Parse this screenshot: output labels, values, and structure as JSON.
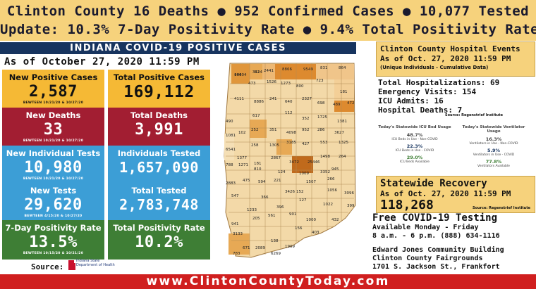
{
  "header": {
    "line1": "Clinton County 16 Deaths  ● 952 Confirmed Cases   ● 10,077 Tested",
    "line2": "Update:   10.3% 7-Day Positivity Rate ● 9.4% Total Positivity Rate"
  },
  "title": "INDIANA COVID-19 POSITIVE CASES",
  "as_of": "As of October 27, 2020 11:59 PM",
  "boxes": [
    {
      "label": "New Positive Cases",
      "value": "2,587",
      "sub": "BEWTEEN 10/21/20 & 10/27/20"
    },
    {
      "label": "Total Positive Cases",
      "value": "169,112",
      "sub": ""
    },
    {
      "label": "New Deaths",
      "value": "33",
      "sub": "BEWTEEN 10/21/20 & 10/27/20"
    },
    {
      "label": "Total Deaths",
      "value": "3,991",
      "sub": ""
    },
    {
      "label": "New Individual Tests",
      "value": "10,980",
      "sub": "BEWTEEN 10/21/20 & 10/27/20"
    },
    {
      "label": "Individuals Tested",
      "value": "1,657,090",
      "sub": ""
    },
    {
      "label": "New Tests",
      "value": "29,620",
      "sub": "BEWTEEN 4/15/20 & 10/27/20"
    },
    {
      "label": "Total Tested",
      "value": "2,783,748",
      "sub": ""
    },
    {
      "label": "7-Day Positivity Rate",
      "value": "13.5%",
      "sub": "BEWTEEN 10/15/20 & 10/21/20"
    },
    {
      "label": "Total Positivity Rate",
      "value": "10.2%",
      "sub": ""
    }
  ],
  "source": {
    "label": "Source:",
    "logo_text_1": "Indiana State",
    "logo_text_2": "Department of Health"
  },
  "map_numbers": [
    "14604",
    "3614",
    "2441",
    "8866",
    "9549",
    "831",
    "864",
    "473",
    "1526",
    "1273",
    "800",
    "723",
    "181",
    "4111",
    "8886",
    "241",
    "640",
    "2327",
    "698",
    "489",
    "472",
    "490",
    "617",
    "112",
    "352",
    "1725",
    "1381",
    "252",
    "351",
    "4098",
    "952",
    "286",
    "3627",
    "1081",
    "102",
    "258",
    "1305",
    "3185",
    "427",
    "553",
    "1325",
    "6541",
    "1377",
    "181",
    "2867",
    "3472",
    "25446",
    "1498",
    "264",
    "788",
    "1271",
    "810",
    "124",
    "1009",
    "3352",
    "945",
    "266",
    "2883",
    "475",
    "594",
    "221",
    "3426",
    "152",
    "1507",
    "547",
    "1056",
    "3096",
    "1233",
    "366",
    "396",
    "127",
    "1022",
    "941",
    "205",
    "561",
    "901",
    "1000",
    "432",
    "399",
    "3133",
    "671",
    "2089",
    "138",
    "156",
    "1909",
    "783",
    "6269",
    "403",
    "404",
    "312"
  ],
  "hospital": {
    "title_line1": "Clinton County Hospital Events",
    "title_line2": "As of Oct. 27, 2020 11:59 PM",
    "title_line3": "(Unique Individuals - Cumulative Data)",
    "stats": [
      "Total Hospitalizations: 69",
      "Emergency Visits: 154",
      "ICU Admits: 16",
      "Hospital Deaths: 7"
    ],
    "source": "Source: Regenstrief Institute"
  },
  "icu_panel": {
    "title": "Today's Statewide ICU Bed Usage",
    "items": [
      {
        "pct": "48.7%",
        "desc": "ICU Beds in Use - Non-COVID"
      },
      {
        "pct": "22.3%",
        "desc": "ICU Beds in Use - COVID"
      },
      {
        "pct": "29.0%",
        "desc": "ICU Beds Available"
      }
    ]
  },
  "vent_panel": {
    "title": "Today's Statewide Ventilator Usage",
    "items": [
      {
        "pct": "16.3%",
        "desc": "Ventilators in Use - Non-COVID"
      },
      {
        "pct": "5.9%",
        "desc": "Ventilators in Use - COVID"
      },
      {
        "pct": "77.8%",
        "desc": "Ventilators Available"
      }
    ]
  },
  "recovery": {
    "title": "Statewide Recovery",
    "as_of": "As of Oct. 27, 2020 11:59 PM",
    "value": "118,268",
    "source": "Source: Regenstrief Institute"
  },
  "testing": {
    "title": "Free COVID-19 Testing",
    "lines": [
      "Available Monday - Friday",
      "8 a.m. - 6 p.m.   (888) 634-1116"
    ],
    "location": [
      "Edward Jones Community Building",
      "Clinton County Fairgrounds",
      "1701 S. Jackson St., Frankfort"
    ]
  },
  "footer": "www.ClintonCountyToday.com",
  "colors": {
    "yellow": "#f5b935",
    "red": "#a21e32",
    "blue": "#3c9ed6",
    "green": "#3e7e35",
    "header": "#f6d27c",
    "footer": "#d01f1f",
    "navy": "#17345f"
  }
}
